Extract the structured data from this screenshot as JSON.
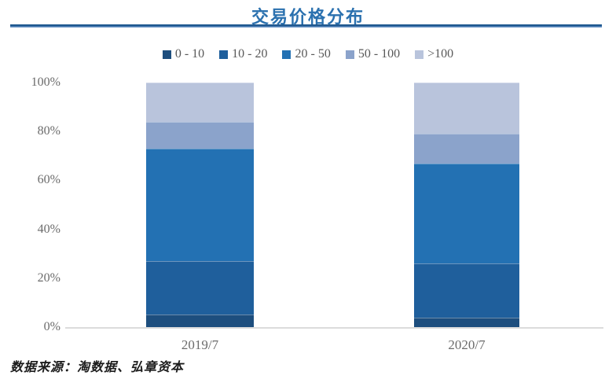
{
  "title": "交易价格分布",
  "source": "数据来源：淘数据、弘章资本",
  "colors": {
    "title_text": "#2B71AF",
    "rule_dark": "#1E578F",
    "rule_light": "#6F98C9",
    "axis_line": "#DCDCDC",
    "label_gray": "#6B6B6B"
  },
  "chart_data": {
    "type": "bar",
    "stacked": true,
    "unit": "%",
    "title": "交易价格分布",
    "categories": [
      "2019/7",
      "2020/7"
    ],
    "series": [
      {
        "name": "0 - 10",
        "color": "#1D4E7E",
        "values": [
          5,
          4
        ]
      },
      {
        "name": "10 - 20",
        "color": "#1F5F9C",
        "values": [
          22,
          22
        ]
      },
      {
        "name": "20 - 50",
        "color": "#2371B3",
        "values": [
          46,
          41
        ]
      },
      {
        "name": "50 - 100",
        "color": "#8BA3CB",
        "values": [
          11,
          12
        ]
      },
      {
        "name": ">100",
        "color": "#B9C4DC",
        "values": [
          16,
          21
        ]
      }
    ],
    "xlabel": "",
    "ylabel": "",
    "ylim": [
      0,
      100
    ],
    "yticks": [
      "0%",
      "20%",
      "40%",
      "60%",
      "80%",
      "100%"
    ],
    "grid": false,
    "legend_position": "top"
  }
}
